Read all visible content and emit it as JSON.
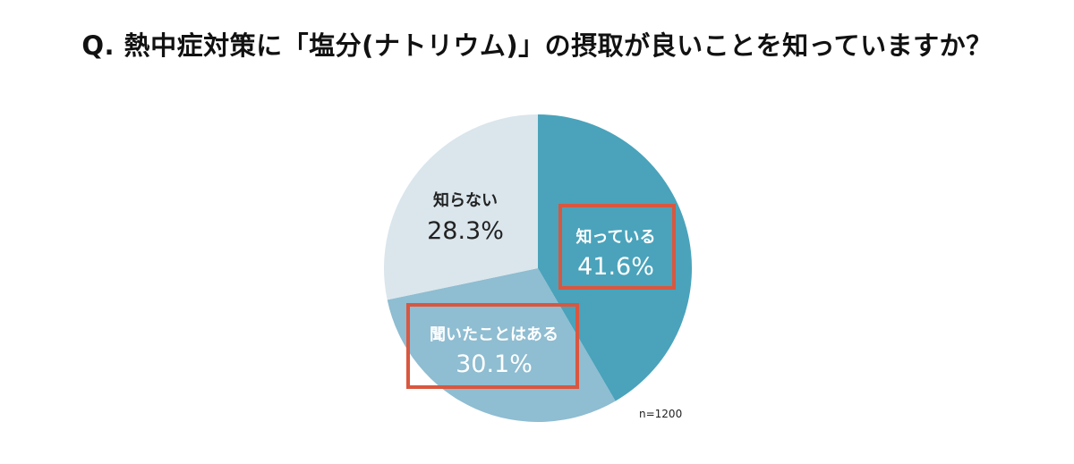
{
  "question": "Q. 熱中症対策に「塩分(ナトリウム)」の摂取が良いことを知っていますか？",
  "sample_size": "n=1200",
  "chart_data": {
    "type": "pie",
    "title": "Q. 熱中症対策に「塩分(ナトリウム)」の摂取が良いことを知っていますか？",
    "start": "12 o'clock",
    "direction": "clockwise",
    "slices": [
      {
        "label": "知っている",
        "value": 41.6,
        "value_label": "41.6%",
        "color": "#4aa3bb",
        "text_color": "#ffffff",
        "highlighted": true
      },
      {
        "label": "聞いたことはある",
        "value": 30.1,
        "value_label": "30.1%",
        "color": "#8fbdd1",
        "text_color": "#ffffff",
        "highlighted": true
      },
      {
        "label": "知らない",
        "value": 28.3,
        "value_label": "28.3%",
        "color": "#dae6ec",
        "text_color": "#222222",
        "highlighted": false
      }
    ],
    "highlight_color": "#d9573f"
  }
}
